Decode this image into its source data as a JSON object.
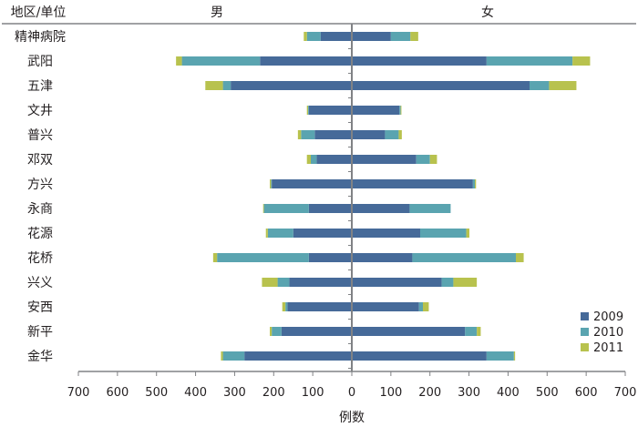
{
  "chart_data": {
    "type": "bar",
    "orientation": "horizontal-butterfly",
    "corner_label": "地区/单位",
    "left_panel_title": "男",
    "right_panel_title": "女",
    "xlabel": "例数",
    "xlim": [
      -700,
      700
    ],
    "xticks": [
      -700,
      -600,
      -500,
      -400,
      -300,
      -200,
      -100,
      0,
      100,
      200,
      300,
      400,
      500,
      600,
      700
    ],
    "xtick_labels": [
      "700",
      "600",
      "500",
      "400",
      "300",
      "200",
      "100",
      "0",
      "100",
      "200",
      "300",
      "400",
      "500",
      "600",
      "700"
    ],
    "categories": [
      "精神病院",
      "武阳",
      "五津",
      "文井",
      "普兴",
      "邓双",
      "方兴",
      "永商",
      "花源",
      "花桥",
      "兴义",
      "安西",
      "新平",
      "金华"
    ],
    "legend_position": "bottom-right",
    "series": [
      {
        "name": "2009",
        "color": "#466a99",
        "male": [
          80,
          235,
          310,
          110,
          95,
          90,
          205,
          110,
          150,
          110,
          160,
          165,
          180,
          275
        ],
        "female": [
          100,
          345,
          455,
          122,
          85,
          165,
          310,
          148,
          175,
          155,
          230,
          172,
          290,
          345
        ]
      },
      {
        "name": "2010",
        "color": "#5aa4b0",
        "male": [
          35,
          200,
          20,
          2,
          35,
          15,
          2,
          115,
          65,
          235,
          30,
          5,
          25,
          55
        ],
        "female": [
          50,
          220,
          50,
          3,
          35,
          35,
          5,
          105,
          118,
          265,
          30,
          10,
          30,
          70
        ]
      },
      {
        "name": "2011",
        "color": "#b8c24e",
        "male": [
          8,
          15,
          45,
          3,
          8,
          10,
          3,
          2,
          5,
          10,
          40,
          8,
          5,
          5
        ],
        "female": [
          20,
          45,
          70,
          2,
          8,
          18,
          3,
          0,
          8,
          20,
          60,
          15,
          10,
          3
        ]
      }
    ]
  }
}
